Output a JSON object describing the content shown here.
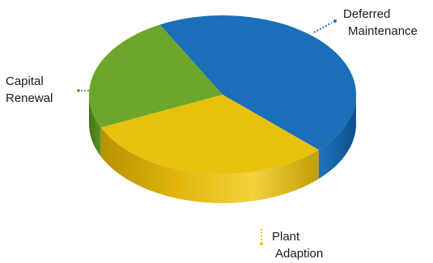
{
  "chart_data": {
    "type": "pie",
    "title": "",
    "legend": "none",
    "slices": [
      {
        "label": "Deferred Maintenance",
        "value": 45,
        "color": "#1a6fb8"
      },
      {
        "label": "Plant Adaption",
        "value": 31,
        "color": "#e8c10d"
      },
      {
        "label": "Capital Renewal",
        "value": 24,
        "color": "#6da62b"
      }
    ]
  }
}
